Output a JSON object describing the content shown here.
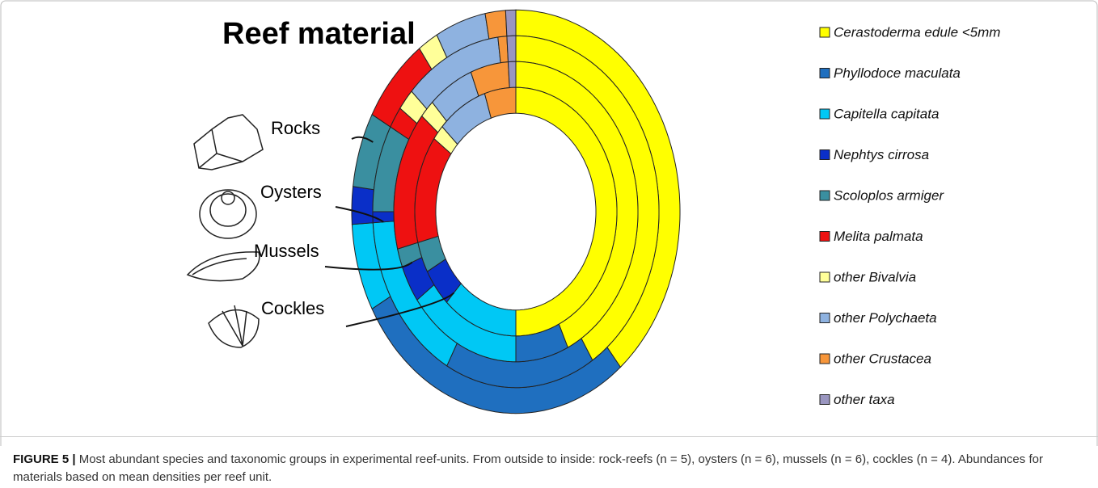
{
  "chart_data": {
    "type": "pie",
    "title": "Reef material",
    "categories": [
      "Cerastoderma edule <5mm",
      "Phyllodoce maculata",
      "Capitella capitata",
      "Nephtys cirrosa",
      "Scoloplos armiger",
      "Melita palmata",
      "other Bivalvia",
      "other Polychaeta",
      "other Crustacea",
      "other taxa"
    ],
    "colors": [
      "#ffff00",
      "#1f6fbf",
      "#00c8f5",
      "#0a2fc8",
      "#3a8fa0",
      "#ee1111",
      "#ffff99",
      "#8eb2e0",
      "#f7963a",
      "#9a96c0"
    ],
    "series": [
      {
        "name": "Rocks",
        "values": [
          39,
          28,
          7,
          3,
          6,
          7,
          2,
          5,
          2,
          1
        ]
      },
      {
        "name": "Oysters",
        "values": [
          41,
          17,
          16,
          1,
          8,
          2,
          2,
          11,
          1,
          1
        ]
      },
      {
        "name": "Mussels",
        "values": [
          43,
          7,
          15,
          4,
          2,
          15,
          2,
          6,
          5,
          1
        ]
      },
      {
        "name": "Cockles",
        "values": [
          50,
          0,
          12,
          5,
          4,
          14,
          2,
          8,
          5,
          0
        ]
      }
    ]
  },
  "caption": {
    "label": "FIGURE 5 |",
    "text": "Most abundant species and taxonomic groups in experimental reef-units. From outside to inside: rock-reefs (n = 5), oysters (n = 6), mussels (n = 6), cockles (n = 4). Abundances for materials based on mean densities per reef unit."
  }
}
